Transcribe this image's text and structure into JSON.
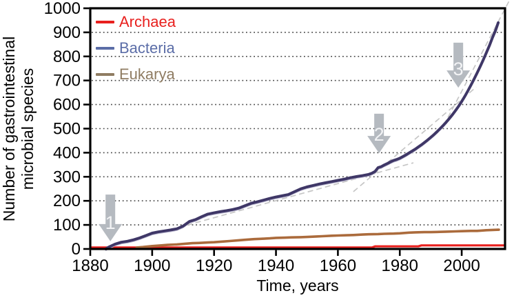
{
  "chart_data": {
    "type": "line",
    "title": "",
    "xlabel": "Time, years",
    "ylabel": "Number of gastrointestinal microbial species",
    "ylabel_lines": [
      "Number of gastrointestinal",
      "microbial species"
    ],
    "xlim": [
      1880,
      2014
    ],
    "ylim": [
      0,
      1000
    ],
    "x_ticks": [
      1880,
      1900,
      1920,
      1940,
      1960,
      1980,
      2000
    ],
    "y_ticks": [
      0,
      100,
      200,
      300,
      400,
      500,
      600,
      700,
      800,
      900,
      1000
    ],
    "y_gridlines": [
      100,
      200,
      300,
      400,
      500,
      600,
      700,
      800,
      900
    ],
    "grid": "horizontal-dotted",
    "legend_position": "top-left-inside",
    "legend": [
      {
        "label": "Archaea",
        "color": "#e8201e"
      },
      {
        "label": "Bacteria",
        "color": "#5b6da7"
      },
      {
        "label": "Eukarya",
        "color": "#8f7c62"
      }
    ],
    "style": {
      "frame_color": "#000000",
      "grid_color": "#474747",
      "trend_color": "#c6c6c6",
      "arrow_fill": "#b5bac0",
      "arrow_text_color": "#f2f3f5",
      "companion_color": "#b9b6cf"
    },
    "series": [
      {
        "name": "Archaea",
        "color": "#e8201e",
        "width": 3.2,
        "points": [
          [
            1880,
            6
          ],
          [
            1971,
            6
          ],
          [
            1972,
            11
          ],
          [
            1986,
            11
          ],
          [
            1987,
            15
          ],
          [
            2014,
            15
          ]
        ]
      },
      {
        "name": "Eukarya",
        "color": "#ab6b3c",
        "width": 3.6,
        "points": [
          [
            1895,
            6
          ],
          [
            1897,
            8
          ],
          [
            1900,
            12
          ],
          [
            1903,
            15
          ],
          [
            1905,
            17
          ],
          [
            1908,
            19
          ],
          [
            1910,
            21
          ],
          [
            1913,
            24
          ],
          [
            1915,
            25
          ],
          [
            1918,
            27
          ],
          [
            1920,
            28
          ],
          [
            1923,
            31
          ],
          [
            1925,
            33
          ],
          [
            1928,
            36
          ],
          [
            1930,
            38
          ],
          [
            1933,
            41
          ],
          [
            1935,
            42
          ],
          [
            1938,
            44
          ],
          [
            1940,
            46
          ],
          [
            1943,
            47
          ],
          [
            1945,
            48
          ],
          [
            1948,
            49
          ],
          [
            1950,
            50
          ],
          [
            1953,
            52
          ],
          [
            1955,
            53
          ],
          [
            1958,
            55
          ],
          [
            1960,
            56
          ],
          [
            1963,
            57
          ],
          [
            1965,
            58
          ],
          [
            1968,
            60
          ],
          [
            1970,
            61
          ],
          [
            1973,
            62
          ],
          [
            1975,
            63
          ],
          [
            1978,
            64
          ],
          [
            1980,
            65
          ],
          [
            1983,
            68
          ],
          [
            1985,
            69
          ],
          [
            1988,
            70
          ],
          [
            1990,
            70
          ],
          [
            1993,
            71
          ],
          [
            1995,
            72
          ],
          [
            1998,
            73
          ],
          [
            2000,
            74
          ],
          [
            2003,
            75
          ],
          [
            2005,
            75
          ],
          [
            2008,
            78
          ],
          [
            2010,
            79
          ],
          [
            2012,
            80
          ]
        ]
      },
      {
        "name": "Bacteria",
        "color": "#3f3767",
        "width": 4,
        "companion": true,
        "points": [
          [
            1885,
            0
          ],
          [
            1886,
            8
          ],
          [
            1888,
            20
          ],
          [
            1890,
            28
          ],
          [
            1892,
            32
          ],
          [
            1894,
            38
          ],
          [
            1896,
            46
          ],
          [
            1898,
            56
          ],
          [
            1900,
            66
          ],
          [
            1902,
            71
          ],
          [
            1904,
            75
          ],
          [
            1906,
            79
          ],
          [
            1908,
            84
          ],
          [
            1910,
            95
          ],
          [
            1912,
            114
          ],
          [
            1914,
            122
          ],
          [
            1916,
            134
          ],
          [
            1918,
            145
          ],
          [
            1920,
            150
          ],
          [
            1922,
            155
          ],
          [
            1924,
            159
          ],
          [
            1926,
            164
          ],
          [
            1928,
            170
          ],
          [
            1930,
            180
          ],
          [
            1932,
            190
          ],
          [
            1934,
            196
          ],
          [
            1936,
            203
          ],
          [
            1938,
            210
          ],
          [
            1940,
            216
          ],
          [
            1942,
            221
          ],
          [
            1944,
            226
          ],
          [
            1946,
            238
          ],
          [
            1948,
            250
          ],
          [
            1950,
            258
          ],
          [
            1952,
            264
          ],
          [
            1954,
            270
          ],
          [
            1956,
            275
          ],
          [
            1958,
            280
          ],
          [
            1960,
            285
          ],
          [
            1962,
            290
          ],
          [
            1964,
            296
          ],
          [
            1966,
            301
          ],
          [
            1968,
            305
          ],
          [
            1970,
            310
          ],
          [
            1971,
            315
          ],
          [
            1972,
            322
          ],
          [
            1973,
            338
          ],
          [
            1974,
            342
          ],
          [
            1975,
            349
          ],
          [
            1976,
            355
          ],
          [
            1977,
            362
          ],
          [
            1978,
            368
          ],
          [
            1979,
            372
          ],
          [
            1980,
            377
          ],
          [
            1981,
            384
          ],
          [
            1982,
            391
          ],
          [
            1983,
            399
          ],
          [
            1984,
            407
          ],
          [
            1985,
            415
          ],
          [
            1986,
            424
          ],
          [
            1987,
            433
          ],
          [
            1988,
            443
          ],
          [
            1989,
            453
          ],
          [
            1990,
            464
          ],
          [
            1991,
            475
          ],
          [
            1992,
            487
          ],
          [
            1993,
            500
          ],
          [
            1994,
            513
          ],
          [
            1995,
            527
          ],
          [
            1996,
            542
          ],
          [
            1997,
            558
          ],
          [
            1998,
            575
          ],
          [
            1999,
            593
          ],
          [
            2000,
            613
          ],
          [
            2001,
            634
          ],
          [
            2002,
            657
          ],
          [
            2003,
            681
          ],
          [
            2004,
            706
          ],
          [
            2005,
            732
          ],
          [
            2006,
            759
          ],
          [
            2007,
            787
          ],
          [
            2008,
            816
          ],
          [
            2009,
            846
          ],
          [
            2010,
            880
          ],
          [
            2011,
            910
          ],
          [
            2011.8,
            940
          ]
        ]
      }
    ],
    "trend_lines": [
      {
        "x1": 1883.3,
        "y1": 0,
        "x2": 1984.4,
        "y2": 358
      },
      {
        "x1": 1965.0,
        "y1": 238,
        "x2": 2004.7,
        "y2": 673
      },
      {
        "x1": 1994.2,
        "y1": 513,
        "x2": 2016.2,
        "y2": 1052
      }
    ],
    "annotations": [
      {
        "label": "1",
        "year": 1886.5,
        "tip_value": 32,
        "top_value": 226
      },
      {
        "label": "2",
        "year": 1973.3,
        "tip_value": 398,
        "top_value": 562
      },
      {
        "label": "3",
        "year": 1998.9,
        "tip_value": 670,
        "top_value": 857
      }
    ]
  }
}
